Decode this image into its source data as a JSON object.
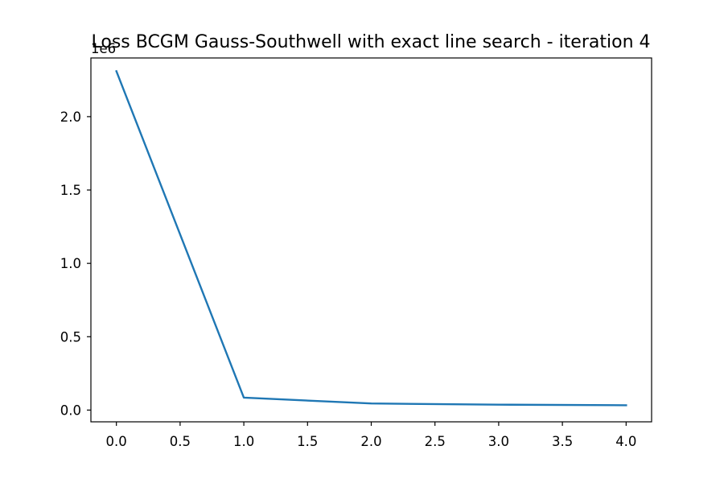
{
  "chart_data": {
    "type": "line",
    "title": "Loss BCGM Gauss-Southwell with exact line search - iteration 4",
    "xlabel": "",
    "ylabel": "",
    "y_offset_label": "1e6",
    "xlim": [
      -0.2,
      4.2
    ],
    "ylim": [
      -0.08,
      2.4
    ],
    "x_ticks": [
      0.0,
      0.5,
      1.0,
      1.5,
      2.0,
      2.5,
      3.0,
      3.5,
      4.0
    ],
    "x_tick_labels": [
      "0.0",
      "0.5",
      "1.0",
      "1.5",
      "2.0",
      "2.5",
      "3.0",
      "3.5",
      "4.0"
    ],
    "y_ticks": [
      0.0,
      0.5,
      1.0,
      1.5,
      2.0
    ],
    "y_tick_labels": [
      "0.0",
      "0.5",
      "1.0",
      "1.5",
      "2.0"
    ],
    "grid": false,
    "series": [
      {
        "color": "#1f77b4",
        "x": [
          0,
          1,
          2,
          3,
          4
        ],
        "y": [
          2.31,
          0.085,
          0.045,
          0.037,
          0.033
        ]
      }
    ]
  }
}
